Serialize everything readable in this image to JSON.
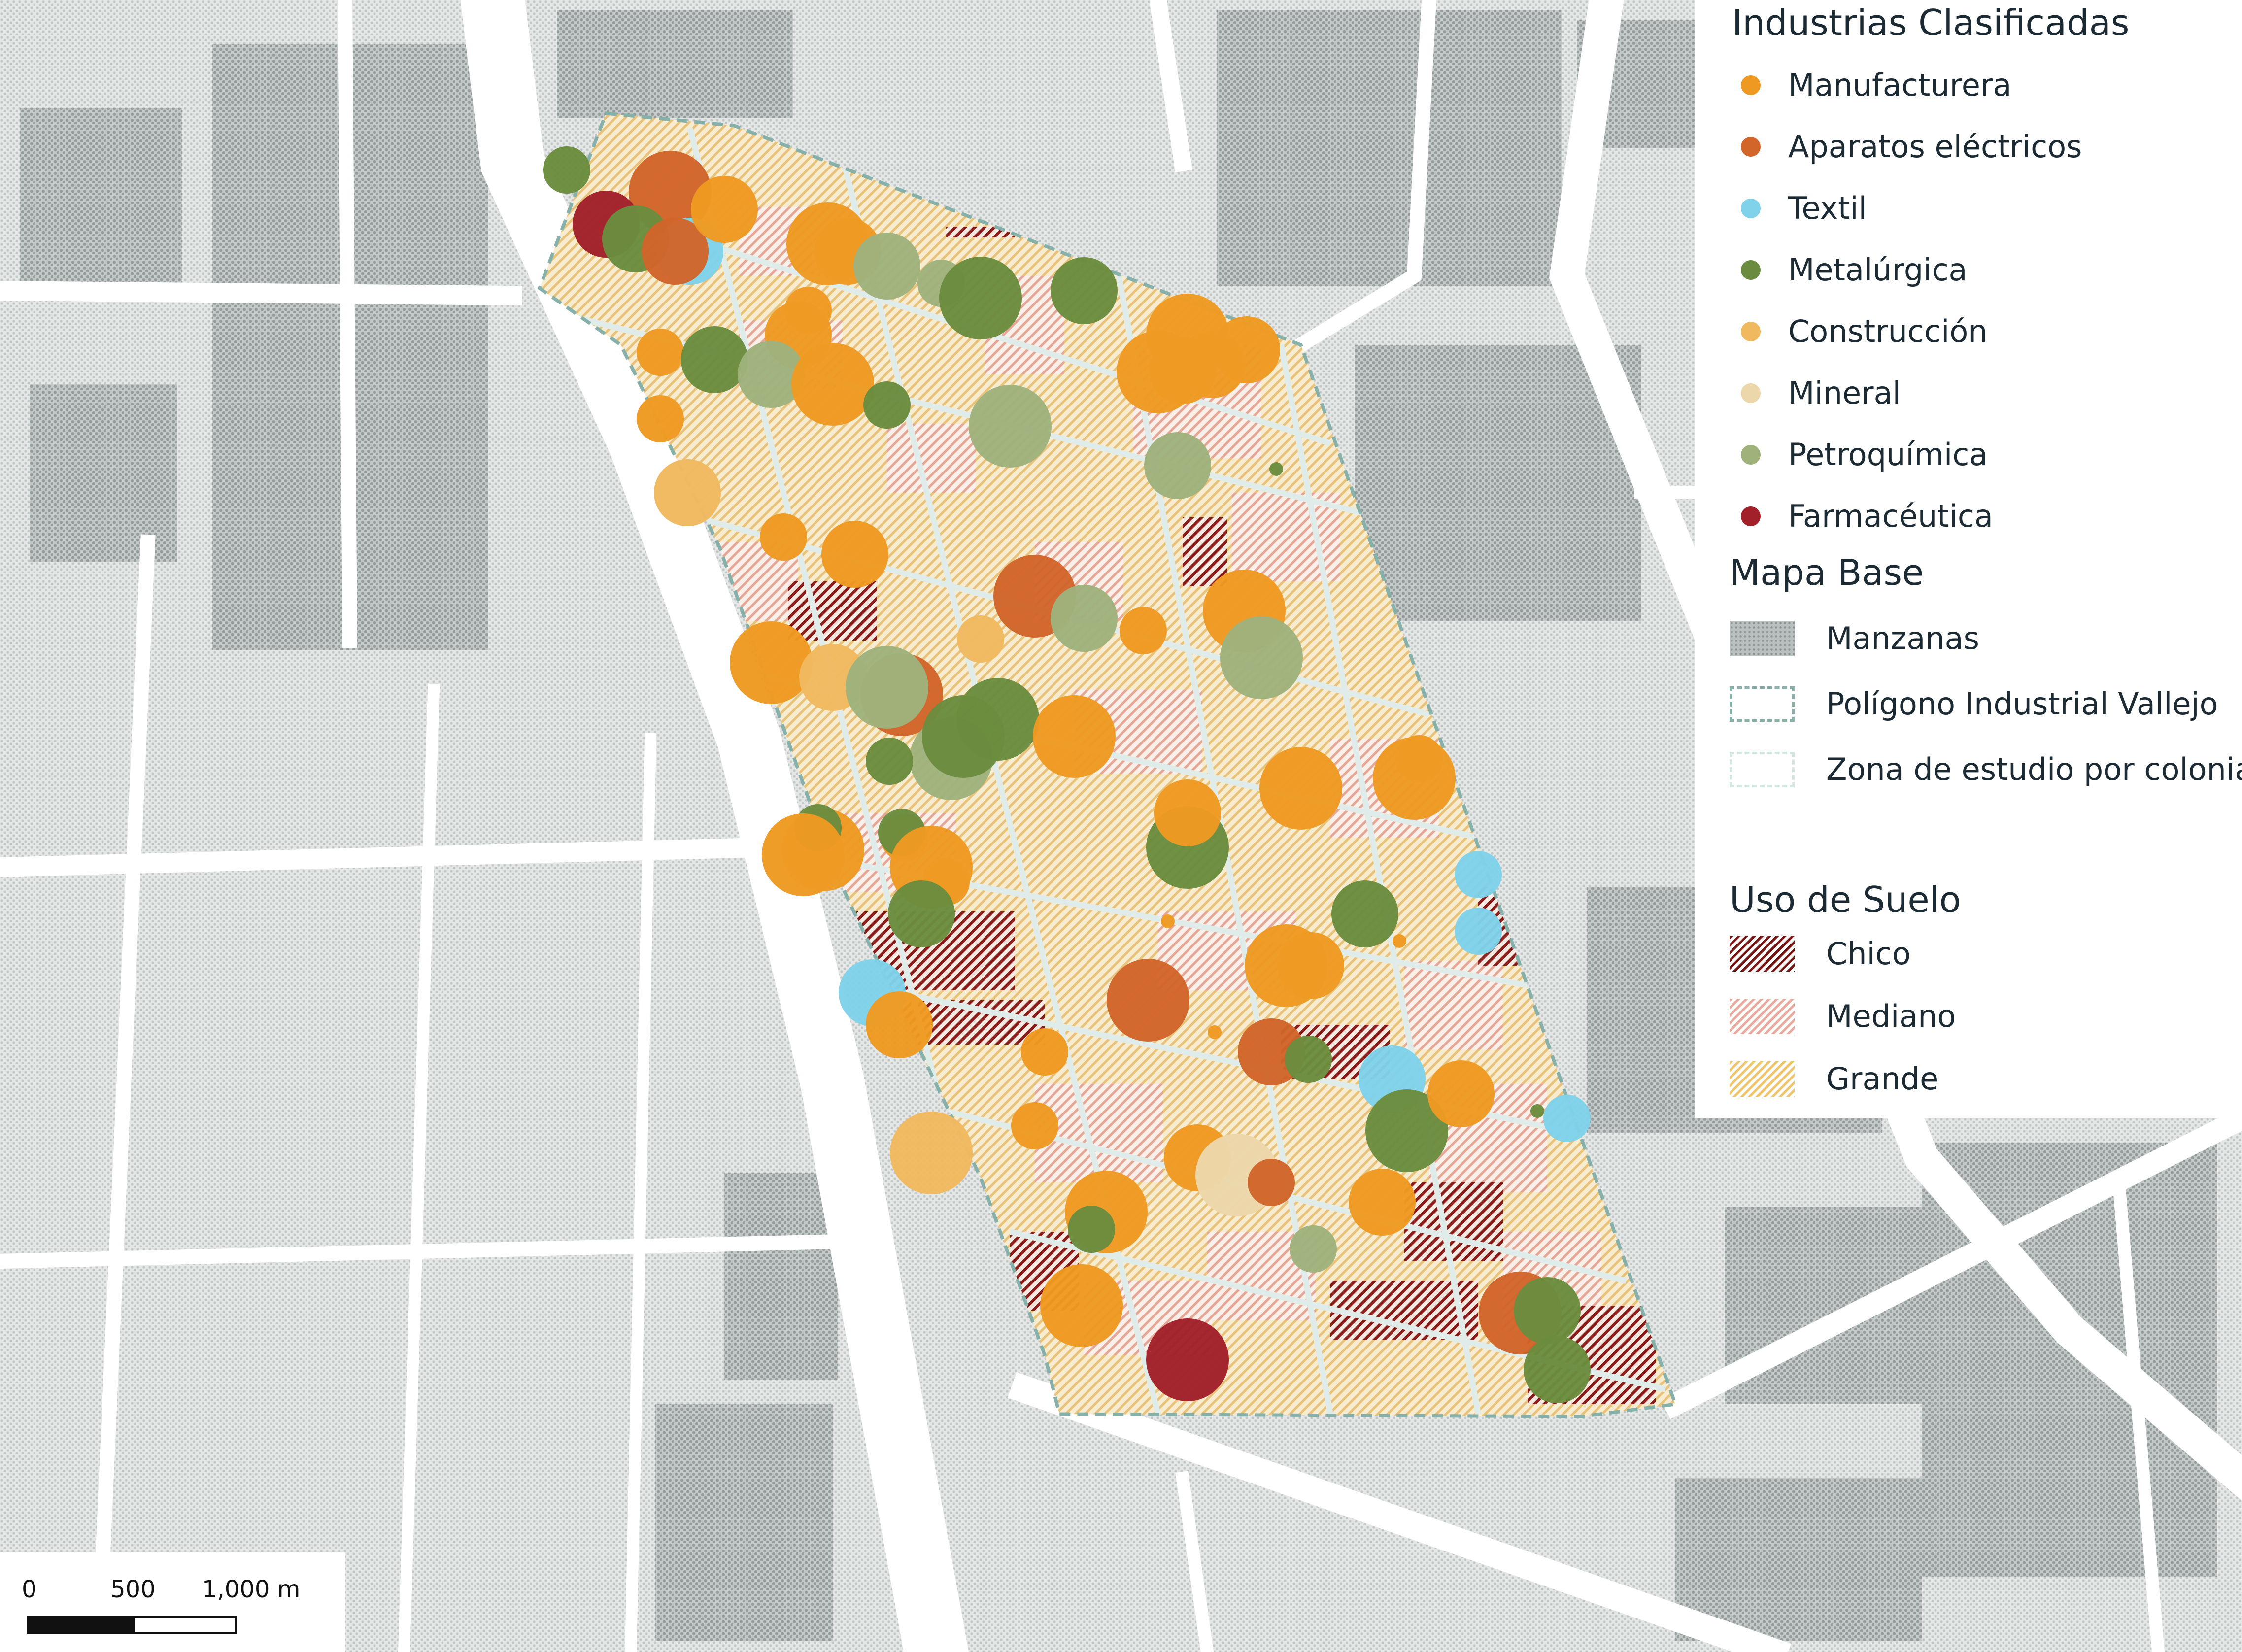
{
  "legend_industrias": {
    "title": "Industrias Clasificadas",
    "items": [
      {
        "label": "Manufacturera",
        "color": "#ee9a22"
      },
      {
        "label": "Aparatos eléctricos",
        "color": "#d1652a"
      },
      {
        "label": "Textil",
        "color": "#7fd2ea"
      },
      {
        "label": "Metalúrgica",
        "color": "#6b8c3e"
      },
      {
        "label": "Construcción",
        "color": "#f1b95f"
      },
      {
        "label": "Mineral",
        "color": "#ecd7aa"
      },
      {
        "label": "Petroquímica",
        "color": "#9fb27c"
      },
      {
        "label": "Farmacéutica",
        "color": "#a1202a"
      }
    ]
  },
  "legend_mapa_base": {
    "title": "Mapa Base",
    "items": [
      {
        "label": "Manzanas",
        "style": "manzanas"
      },
      {
        "label": "Polígono Industrial Vallejo",
        "style": "poligono"
      },
      {
        "label": "Zona de estudio por colonias",
        "style": "zona"
      }
    ]
  },
  "legend_uso_suelo": {
    "title": "Uso de Suelo",
    "items": [
      {
        "label": "Chico",
        "style": "chico"
      },
      {
        "label": "Mediano",
        "style": "mediano"
      },
      {
        "label": "Grande",
        "style": "grande"
      }
    ]
  },
  "scale_bar": {
    "labels": [
      "0",
      "500",
      "1,000 m"
    ]
  },
  "industries": [
    {
      "cat": "Metalúrgica",
      "size": 1
    },
    {
      "cat": "Aparatos eléctricos",
      "size": 3
    },
    {
      "cat": "Farmacéutica",
      "size": 2
    },
    {
      "cat": "Textil",
      "size": 2
    },
    {
      "cat": "Metalúrgica",
      "size": 2
    },
    {
      "cat": "Aparatos eléctricos",
      "size": 2
    },
    {
      "cat": "Manufacturera",
      "size": 2
    },
    {
      "cat": "Manufacturera",
      "size": 3
    },
    {
      "cat": "Manufacturera",
      "size": 2
    },
    {
      "cat": "Petroquímica",
      "size": 2
    },
    {
      "cat": "Petroquímica",
      "size": 1
    },
    {
      "cat": "Metalúrgica",
      "size": 3
    },
    {
      "cat": "Metalúrgica",
      "size": 2
    },
    {
      "cat": "Manufacturera",
      "size": 1
    },
    {
      "cat": "Manufacturera",
      "size": 2
    },
    {
      "cat": "Manufacturera",
      "size": 1
    },
    {
      "cat": "Metalúrgica",
      "size": 2
    },
    {
      "cat": "Petroquímica",
      "size": 2
    },
    {
      "cat": "Manufacturera",
      "size": 3
    },
    {
      "cat": "Metalúrgica",
      "size": 1
    },
    {
      "cat": "Manufacturera",
      "size": 1
    },
    {
      "cat": "Petroquímica",
      "size": 3
    },
    {
      "cat": "Manufacturera",
      "size": 3
    },
    {
      "cat": "Manufacturera",
      "size": 2
    },
    {
      "cat": "Manufacturera",
      "size": 2
    },
    {
      "cat": "Manufacturera",
      "size": 2
    },
    {
      "cat": "Manufacturera",
      "size": 3
    },
    {
      "cat": "Petroquímica",
      "size": 2
    },
    {
      "cat": "Metalúrgica",
      "size": 0
    },
    {
      "cat": "Construcción",
      "size": 2
    },
    {
      "cat": "Manufacturera",
      "size": 1
    },
    {
      "cat": "Manufacturera",
      "size": 2
    },
    {
      "cat": "Aparatos eléctricos",
      "size": 3
    },
    {
      "cat": "Petroquímica",
      "size": 2
    },
    {
      "cat": "Construcción",
      "size": 1
    },
    {
      "cat": "Manufacturera",
      "size": 1
    },
    {
      "cat": "Manufacturera",
      "size": 3
    },
    {
      "cat": "Petroquímica",
      "size": 3
    },
    {
      "cat": "Manufacturera",
      "size": 3
    },
    {
      "cat": "Construcción",
      "size": 2
    },
    {
      "cat": "Aparatos eléctricos",
      "size": 3
    },
    {
      "cat": "Petroquímica",
      "size": 3
    },
    {
      "cat": "Petroquímica",
      "size": 3
    },
    {
      "cat": "Metalúrgica",
      "size": 3
    },
    {
      "cat": "Metalúrgica",
      "size": 3
    },
    {
      "cat": "Manufacturera",
      "size": 3
    },
    {
      "cat": "Metalúrgica",
      "size": 1
    },
    {
      "cat": "Manufacturera",
      "size": 3
    },
    {
      "cat": "Manufacturera",
      "size": 3
    },
    {
      "cat": "Manufacturera",
      "size": 1
    },
    {
      "cat": "Metalúrgica",
      "size": 3
    },
    {
      "cat": "Manufacturera",
      "size": 2
    },
    {
      "cat": "Manufacturera",
      "size": 3
    },
    {
      "cat": "Metalúrgica",
      "size": 1
    },
    {
      "cat": "Manufacturera",
      "size": 3
    },
    {
      "cat": "Manufacturera",
      "size": 1
    },
    {
      "cat": "Metalúrgica",
      "size": 1
    },
    {
      "cat": "Manufacturera",
      "size": 3
    },
    {
      "cat": "Manufacturera",
      "size": 1
    },
    {
      "cat": "Metalúrgica",
      "size": 2
    },
    {
      "cat": "Metalúrgica",
      "size": 2
    },
    {
      "cat": "Manufacturera",
      "size": 3
    },
    {
      "cat": "Manufacturera",
      "size": 2
    },
    {
      "cat": "Manufacturera",
      "size": 0
    },
    {
      "cat": "Textil",
      "size": 1
    },
    {
      "cat": "Textil",
      "size": 2
    },
    {
      "cat": "Manufacturera",
      "size": 2
    },
    {
      "cat": "Aparatos eléctricos",
      "size": 3
    },
    {
      "cat": "Manufacturera",
      "size": 1
    },
    {
      "cat": "Aparatos eléctricos",
      "size": 2
    },
    {
      "cat": "Metalúrgica",
      "size": 1
    },
    {
      "cat": "Textil",
      "size": 2
    },
    {
      "cat": "Metalúrgica",
      "size": 3
    },
    {
      "cat": "Manufacturera",
      "size": 2
    },
    {
      "cat": "Construcción",
      "size": 3
    },
    {
      "cat": "Manufacturera",
      "size": 1
    },
    {
      "cat": "Manufacturera",
      "size": 2
    },
    {
      "cat": "Mineral",
      "size": 3
    },
    {
      "cat": "Aparatos eléctricos",
      "size": 1
    },
    {
      "cat": "Manufacturera",
      "size": 2
    },
    {
      "cat": "Manufacturera",
      "size": 3
    },
    {
      "cat": "Metalúrgica",
      "size": 1
    },
    {
      "cat": "Petroquímica",
      "size": 1
    },
    {
      "cat": "Manufacturera",
      "size": 3
    },
    {
      "cat": "Farmacéutica",
      "size": 3
    },
    {
      "cat": "Aparatos eléctricos",
      "size": 3
    },
    {
      "cat": "Metalúrgica",
      "size": 2
    },
    {
      "cat": "Metalúrgica",
      "size": 2
    },
    {
      "cat": "Textil",
      "size": 1
    },
    {
      "cat": "Metalúrgica",
      "size": 0
    },
    {
      "cat": "Manufacturera",
      "size": 0
    },
    {
      "cat": "Textil",
      "size": 1
    },
    {
      "cat": "Manufacturera",
      "size": 0
    }
  ]
}
